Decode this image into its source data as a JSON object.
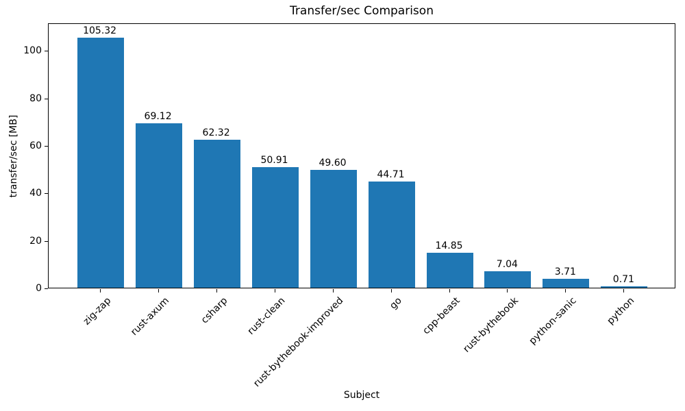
{
  "chart_data": {
    "type": "bar",
    "title": "Transfer/sec Comparison",
    "xlabel": "Subject",
    "ylabel": "transfer/sec [MB]",
    "categories": [
      "zig-zap",
      "rust-axum",
      "csharp",
      "rust-clean",
      "rust-bythebook-improved",
      "go",
      "cpp-beast",
      "rust-bythebook",
      "python-sanic",
      "python"
    ],
    "values": [
      105.32,
      69.12,
      62.32,
      50.91,
      49.6,
      44.71,
      14.85,
      7.04,
      3.71,
      0.71
    ],
    "value_labels": [
      "105.32",
      "69.12",
      "62.32",
      "50.91",
      "49.60",
      "44.71",
      "14.85",
      "7.04",
      "3.71",
      "0.71"
    ],
    "yticks": [
      0,
      20,
      40,
      60,
      80,
      100
    ],
    "ylim": [
      0,
      111.6
    ],
    "xtick_rotation": 45,
    "grid": false,
    "legend_position": "none",
    "bar_color": "#1f77b4",
    "text_color": "#000000"
  }
}
